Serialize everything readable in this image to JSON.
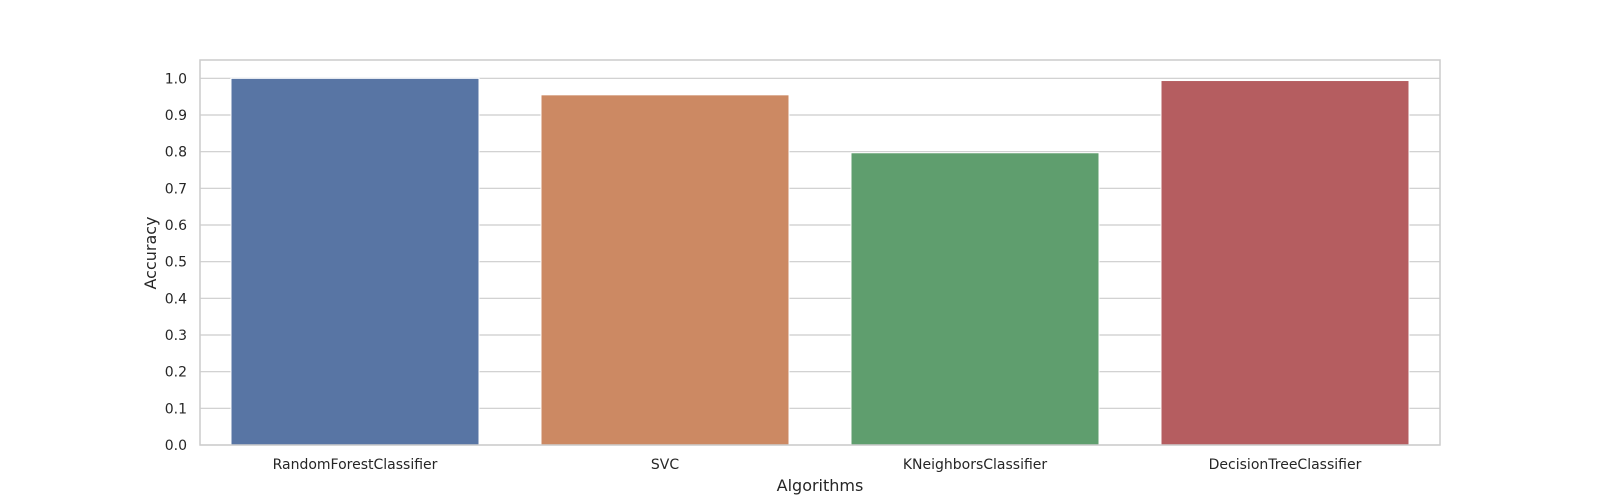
{
  "chart_data": {
    "type": "bar",
    "title": "",
    "xlabel": "Algorithms",
    "ylabel": "Accuracy",
    "categories": [
      "RandomForestClassifier",
      "SVC",
      "KNeighborsClassifier",
      "DecisionTreeClassifier"
    ],
    "values": [
      1.0,
      0.955,
      0.797,
      0.994
    ],
    "colors": [
      "#5875a4",
      "#cc8963",
      "#5f9e6e",
      "#b55d60"
    ],
    "ylim": [
      0,
      1.05
    ],
    "yticks": [
      0.0,
      0.1,
      0.2,
      0.3,
      0.4,
      0.5,
      0.6,
      0.7,
      0.8,
      0.9,
      1.0
    ],
    "ytick_labels": [
      "0.0",
      "0.1",
      "0.2",
      "0.3",
      "0.4",
      "0.5",
      "0.6",
      "0.7",
      "0.8",
      "0.9",
      "1.0"
    ],
    "grid": true,
    "grid_color": "#cccccc",
    "frame_color": "#cccccc"
  }
}
